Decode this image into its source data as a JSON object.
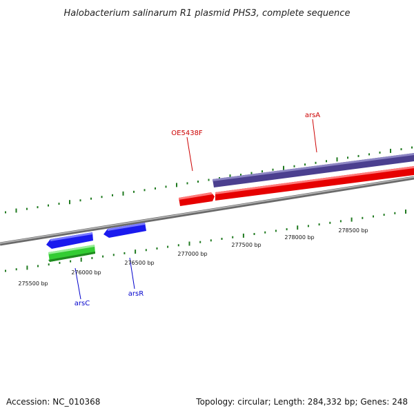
{
  "title": "Halobacterium salinarum R1 plasmid PHS3, complete sequence",
  "accession": "Accession: NC_010368",
  "summary": "Topology: circular; Length: 284,332 bp; Genes: 248",
  "colors": {
    "backbone": "#8a8a8a",
    "tick": "#1f7a1f",
    "label_red": "#cc0000",
    "label_blue": "#0000cc"
  },
  "scale": {
    "unit": "bp",
    "labels": [
      {
        "bp": 275500,
        "text": "275500 bp"
      },
      {
        "bp": 276000,
        "text": "276000 bp"
      },
      {
        "bp": 276500,
        "text": "276500 bp"
      },
      {
        "bp": 277000,
        "text": "277000 bp"
      },
      {
        "bp": 277500,
        "text": "277500 bp"
      },
      {
        "bp": 278000,
        "text": "278000 bp"
      },
      {
        "bp": 278500,
        "text": "278500 bp"
      }
    ]
  },
  "features": [
    {
      "name": "arsA",
      "color": "#4b3f8f",
      "label_color": "#cc0000"
    },
    {
      "name": "OE5438F",
      "color": "#ee1111",
      "label_color": "#cc0000"
    },
    {
      "name": "arsR",
      "color": "#1a1aee",
      "label_color": "#0000cc"
    },
    {
      "name": "arsC",
      "color": "#1a1aee",
      "label_color": "#0000cc"
    },
    {
      "name": "",
      "color": "#33cc33",
      "label_color": ""
    }
  ]
}
